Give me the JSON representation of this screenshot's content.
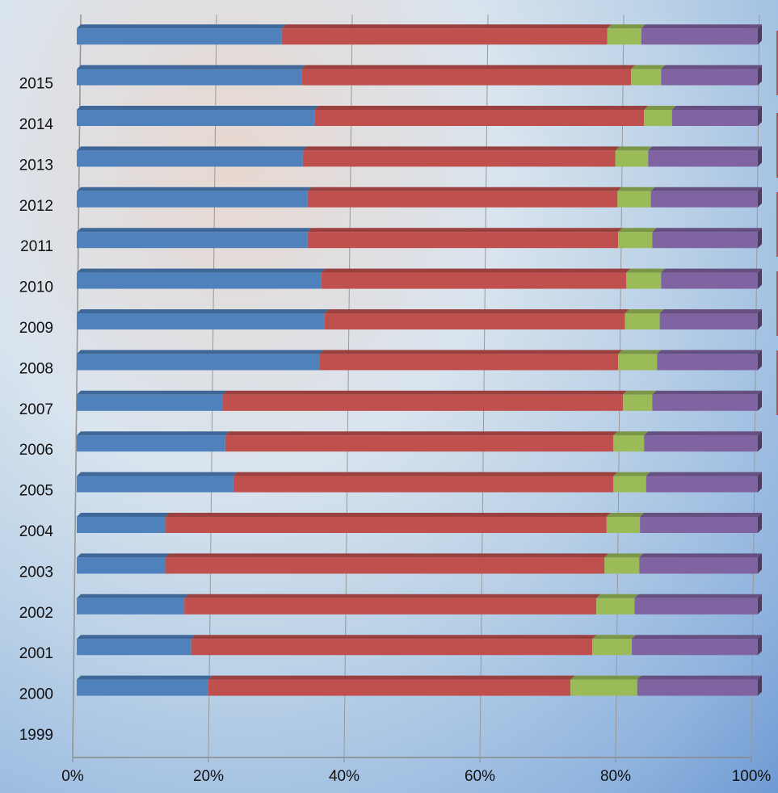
{
  "chart_data": {
    "type": "bar",
    "orientation": "horizontal",
    "stacked": true,
    "categories": [
      "1999",
      "2000",
      "2001",
      "2002",
      "2003",
      "2004",
      "2005",
      "2006",
      "2007",
      "2008",
      "2009",
      "2010",
      "2011",
      "2012",
      "2013",
      "2014",
      "2015",
      null
    ],
    "series": [
      {
        "color": "#4f81bd",
        "values": [
          null,
          19.3,
          16.8,
          15.8,
          13.0,
          13.0,
          23.0,
          21.8,
          21.4,
          35.7,
          36.4,
          35.9,
          33.9,
          33.9,
          33.2,
          34.9,
          33.0,
          30.1
        ]
      },
      {
        "color": "#c0504d",
        "values": [
          null,
          53.2,
          58.9,
          60.5,
          64.5,
          64.8,
          55.8,
          57.0,
          58.8,
          43.8,
          44.1,
          44.8,
          45.6,
          45.5,
          45.9,
          48.4,
          48.4,
          47.8
        ]
      },
      {
        "color": "#9bbb59",
        "values": [
          null,
          9.8,
          5.8,
          5.6,
          5.1,
          4.9,
          4.8,
          4.5,
          4.3,
          5.7,
          5.1,
          5.1,
          5.0,
          4.9,
          4.8,
          4.1,
          4.4,
          5.0
        ]
      },
      {
        "color": "#8064a2",
        "values": [
          null,
          17.7,
          18.5,
          18.1,
          17.4,
          17.3,
          16.4,
          16.7,
          15.5,
          14.8,
          14.4,
          14.2,
          15.5,
          15.7,
          16.1,
          12.6,
          14.2,
          17.1
        ]
      }
    ],
    "xlim": [
      0,
      100
    ],
    "xticks": [
      {
        "value": 0,
        "label": "0%"
      },
      {
        "value": 20,
        "label": "20%"
      },
      {
        "value": 40,
        "label": "40%"
      },
      {
        "value": 60,
        "label": "60%"
      },
      {
        "value": 80,
        "label": "80%"
      },
      {
        "value": 100,
        "label": "100%"
      }
    ],
    "grid": true
  }
}
